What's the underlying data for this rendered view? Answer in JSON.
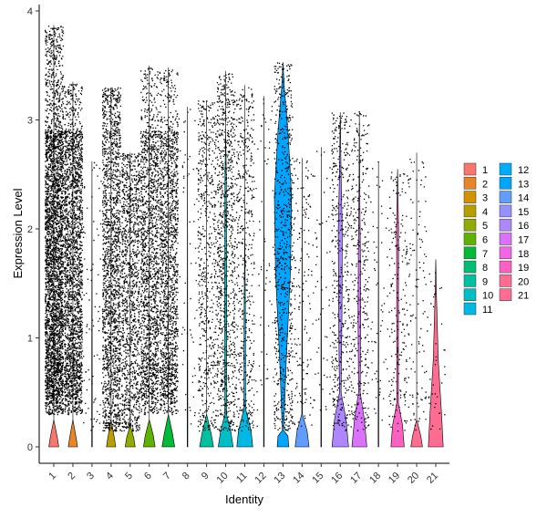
{
  "chart_data": {
    "type": "violin",
    "xlabel": "Identity",
    "ylabel": "Expression Level",
    "ylim": [
      -0.2,
      4.05
    ],
    "yticks": [
      0,
      1,
      2,
      3,
      4
    ],
    "grid": false,
    "legend_position": "right",
    "jitter_points": true,
    "categories": [
      "1",
      "2",
      "3",
      "4",
      "5",
      "6",
      "7",
      "8",
      "9",
      "10",
      "11",
      "12",
      "13",
      "14",
      "15",
      "16",
      "17",
      "18",
      "19",
      "20",
      "21"
    ],
    "colors": [
      "#F8766D",
      "#E88526",
      "#D39200",
      "#B79F00",
      "#93AA00",
      "#5EB300",
      "#00BA38",
      "#00BF74",
      "#00C19F",
      "#00BFC4",
      "#00B9E3",
      "#00ADFA",
      "#00A5FF",
      "#619CFF",
      "#9590FF",
      "#AE87FF",
      "#DB72FB",
      "#F365E6",
      "#FF61C3",
      "#FF6C91",
      "#FF6C91"
    ],
    "violins": [
      {
        "category": "1",
        "max": 3.87,
        "shape": [
          [
            0,
            0.3
          ],
          [
            0.08,
            0.22
          ],
          [
            0.25,
            0
          ],
          [
            3.87,
            0
          ]
        ],
        "dots": 3500
      },
      {
        "category": "2",
        "max": 3.35,
        "shape": [
          [
            0,
            0.28
          ],
          [
            0.08,
            0.2
          ],
          [
            0.25,
            0
          ],
          [
            3.35,
            0
          ]
        ],
        "dots": 2800
      },
      {
        "category": "3",
        "max": 2.62,
        "shape": [
          [
            0,
            0.02
          ],
          [
            2.62,
            0
          ]
        ],
        "dots": 80
      },
      {
        "category": "4",
        "max": 3.3,
        "shape": [
          [
            0,
            0.28
          ],
          [
            0.08,
            0.2
          ],
          [
            0.25,
            0
          ],
          [
            3.3,
            0
          ]
        ],
        "dots": 1800
      },
      {
        "category": "5",
        "max": 2.7,
        "shape": [
          [
            0,
            0.3
          ],
          [
            0.08,
            0.22
          ],
          [
            0.2,
            0
          ],
          [
            2.7,
            0
          ]
        ],
        "dots": 1200
      },
      {
        "category": "6",
        "max": 3.5,
        "shape": [
          [
            0,
            0.35
          ],
          [
            0.1,
            0.25
          ],
          [
            0.25,
            0
          ],
          [
            3.5,
            0
          ]
        ],
        "dots": 1600
      },
      {
        "category": "7",
        "max": 3.48,
        "shape": [
          [
            0,
            0.38
          ],
          [
            0.12,
            0.25
          ],
          [
            0.3,
            0
          ],
          [
            3.48,
            0
          ]
        ],
        "dots": 1600
      },
      {
        "category": "8",
        "max": 3.12,
        "shape": [
          [
            0,
            0.02
          ],
          [
            3.12,
            0
          ]
        ],
        "dots": 60
      },
      {
        "category": "9",
        "max": 3.18,
        "shape": [
          [
            0,
            0.42
          ],
          [
            0.12,
            0.28
          ],
          [
            0.3,
            0
          ],
          [
            3.18,
            0
          ]
        ],
        "dots": 600
      },
      {
        "category": "10",
        "max": 3.45,
        "shape": [
          [
            0,
            0.45
          ],
          [
            0.15,
            0.3
          ],
          [
            0.3,
            0.05
          ],
          [
            1.5,
            0.06
          ],
          [
            2.5,
            0.04
          ],
          [
            2.9,
            0
          ],
          [
            3.45,
            0
          ]
        ],
        "dots": 900
      },
      {
        "category": "11",
        "max": 3.32,
        "shape": [
          [
            0,
            0.48
          ],
          [
            0.15,
            0.38
          ],
          [
            0.35,
            0.05
          ],
          [
            1.2,
            0.04
          ],
          [
            2.0,
            0
          ],
          [
            3.32,
            0
          ]
        ],
        "dots": 500
      },
      {
        "category": "12",
        "max": 3.22,
        "shape": [
          [
            0,
            0.02
          ],
          [
            3.22,
            0
          ]
        ],
        "dots": 60
      },
      {
        "category": "13",
        "max": 3.53,
        "shape": [
          [
            0,
            0.35
          ],
          [
            0.1,
            0.3
          ],
          [
            0.15,
            0.04
          ],
          [
            0.8,
            0.2
          ],
          [
            1.6,
            0.45
          ],
          [
            2.3,
            0.52
          ],
          [
            2.9,
            0.3
          ],
          [
            3.3,
            0.08
          ],
          [
            3.53,
            0
          ]
        ],
        "dots": 700
      },
      {
        "category": "14",
        "max": 2.65,
        "shape": [
          [
            0,
            0.42
          ],
          [
            0.15,
            0.3
          ],
          [
            0.3,
            0.02
          ],
          [
            2.65,
            0
          ]
        ],
        "dots": 150
      },
      {
        "category": "15",
        "max": 2.75,
        "shape": [
          [
            0,
            0.02
          ],
          [
            2.75,
            0
          ]
        ],
        "dots": 60
      },
      {
        "category": "16",
        "max": 3.07,
        "shape": [
          [
            0,
            0.5
          ],
          [
            0.25,
            0.35
          ],
          [
            0.5,
            0.05
          ],
          [
            1.2,
            0.1
          ],
          [
            2.0,
            0.12
          ],
          [
            2.5,
            0.05
          ],
          [
            3.07,
            0
          ]
        ],
        "dots": 450
      },
      {
        "category": "17",
        "max": 3.08,
        "shape": [
          [
            0,
            0.45
          ],
          [
            0.25,
            0.3
          ],
          [
            0.5,
            0.05
          ],
          [
            1.2,
            0.08
          ],
          [
            1.8,
            0.06
          ],
          [
            2.4,
            0.02
          ],
          [
            3.08,
            0
          ]
        ],
        "dots": 350
      },
      {
        "category": "18",
        "max": 2.62,
        "shape": [
          [
            0,
            0.02
          ],
          [
            2.62,
            0
          ]
        ],
        "dots": 60
      },
      {
        "category": "19",
        "max": 2.55,
        "shape": [
          [
            0,
            0.4
          ],
          [
            0.2,
            0.3
          ],
          [
            0.4,
            0.05
          ],
          [
            1.0,
            0.05
          ],
          [
            2.0,
            0.06
          ],
          [
            2.55,
            0
          ]
        ],
        "dots": 200
      },
      {
        "category": "20",
        "max": 2.7,
        "shape": [
          [
            0,
            0.35
          ],
          [
            0.1,
            0.25
          ],
          [
            0.25,
            0
          ],
          [
            2.7,
            0
          ]
        ],
        "dots": 120
      },
      {
        "category": "21",
        "max": 1.72,
        "shape": [
          [
            0,
            0.45
          ],
          [
            0.3,
            0.35
          ],
          [
            0.8,
            0.15
          ],
          [
            1.4,
            0.04
          ],
          [
            1.72,
            0
          ]
        ],
        "dots": 40
      }
    ],
    "legend": {
      "col1": [
        "1",
        "2",
        "3",
        "4",
        "5",
        "6",
        "7",
        "8",
        "9",
        "10",
        "11"
      ],
      "col2": [
        "12",
        "13",
        "14",
        "15",
        "16",
        "17",
        "18",
        "19",
        "20",
        "21"
      ]
    }
  }
}
